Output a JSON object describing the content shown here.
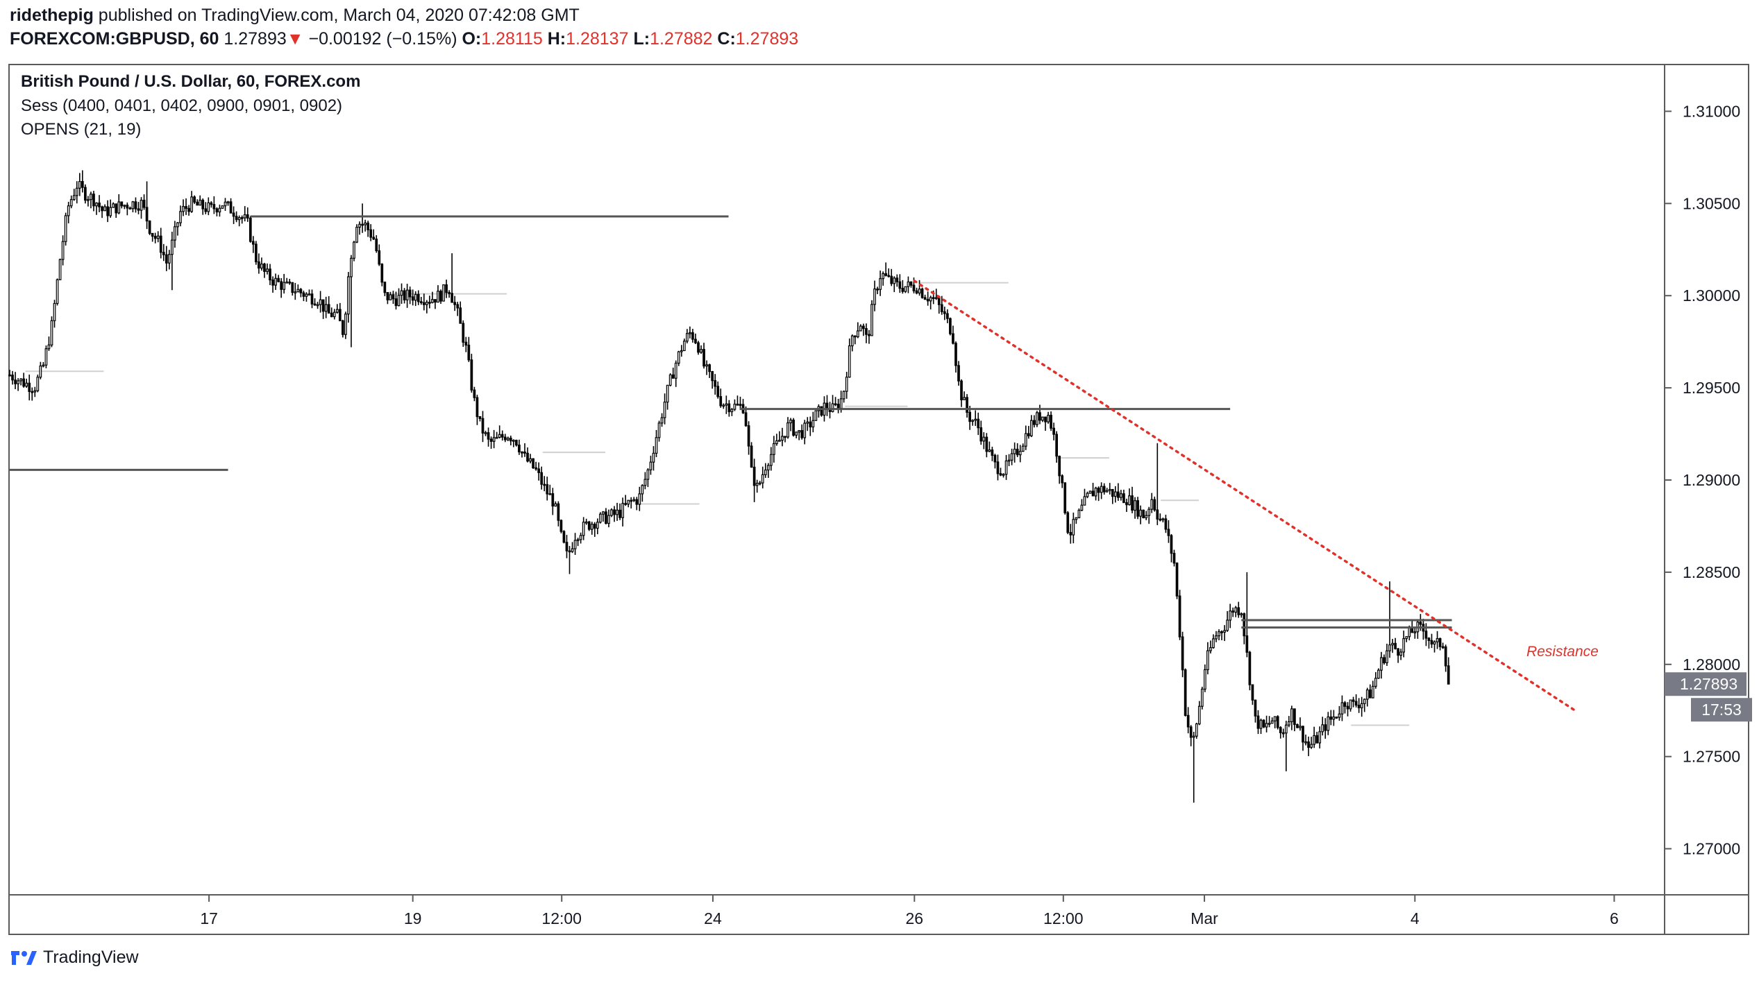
{
  "header": {
    "publisher": "ridethepig",
    "published_text": "published on TradingView.com, March 04, 2020 07:42:08 GMT",
    "symbol": "FOREXCOM:GBPUSD, 60",
    "last": "1.27893",
    "change_arrow": "▼",
    "change": "−0.00192 (−0.15%)",
    "o_label": "O:",
    "o": "1.28115",
    "h_label": "H:",
    "h": "1.28137",
    "l_label": "L:",
    "l": "1.27882",
    "c_label": "C:",
    "c": "1.27893"
  },
  "legend": {
    "title": "British Pound / U.S. Dollar, 60, FOREX.com",
    "sess": "Sess (0400, 0401, 0402, 0900, 0901, 0902)",
    "opens": "OPENS (21, 19)"
  },
  "footer": {
    "brand": "TradingView",
    "logo_icon": "tradingview-logo-icon"
  },
  "colors": {
    "candle": "#000000",
    "level": "#555555",
    "resistance": "#e0312b",
    "price_tag": "#787b86"
  },
  "chart_data": {
    "type": "candlestick",
    "symbol": "GBPUSD",
    "timeframe": "60",
    "ylim": [
      1.2675,
      1.3125
    ],
    "y_ticks": [
      "1.31000",
      "1.30500",
      "1.30000",
      "1.29500",
      "1.29000",
      "1.28500",
      "1.28000",
      "1.27500",
      "1.27000"
    ],
    "x_ticks": [
      {
        "label": "17",
        "t": 178
      },
      {
        "label": "19",
        "t": 360
      },
      {
        "label": "12:00",
        "t": 493
      },
      {
        "label": "24",
        "t": 628
      },
      {
        "label": "26",
        "t": 808
      },
      {
        "label": "12:00",
        "t": 941
      },
      {
        "label": "Mar",
        "t": 1067
      },
      {
        "label": "4",
        "t": 1255
      },
      {
        "label": "6",
        "t": 1433
      }
    ],
    "t_range": [
      0,
      1478
    ],
    "path": [
      [
        0,
        1.2957
      ],
      [
        12,
        1.2953
      ],
      [
        22,
        1.295
      ],
      [
        30,
        1.2962
      ],
      [
        38,
        1.2985
      ],
      [
        45,
        1.302
      ],
      [
        52,
        1.3048
      ],
      [
        60,
        1.306
      ],
      [
        68,
        1.3055
      ],
      [
        76,
        1.3052
      ],
      [
        84,
        1.3045
      ],
      [
        95,
        1.3048
      ],
      [
        108,
        1.305
      ],
      [
        118,
        1.305
      ],
      [
        126,
        1.3035
      ],
      [
        134,
        1.3028
      ],
      [
        140,
        1.3018
      ],
      [
        146,
        1.303
      ],
      [
        152,
        1.3045
      ],
      [
        162,
        1.305
      ],
      [
        172,
        1.3048
      ],
      [
        180,
        1.3047
      ],
      [
        190,
        1.305
      ],
      [
        202,
        1.3045
      ],
      [
        212,
        1.304
      ],
      [
        220,
        1.302
      ],
      [
        228,
        1.3012
      ],
      [
        236,
        1.3008
      ],
      [
        246,
        1.3005
      ],
      [
        256,
        1.3003
      ],
      [
        266,
        1.3
      ],
      [
        276,
        1.2998
      ],
      [
        284,
        1.299
      ],
      [
        292,
        1.299
      ],
      [
        298,
        1.298
      ],
      [
        304,
        1.302
      ],
      [
        310,
        1.304
      ],
      [
        318,
        1.3038
      ],
      [
        326,
        1.303
      ],
      [
        334,
        1.3
      ],
      [
        344,
        1.2998
      ],
      [
        354,
        1.3
      ],
      [
        364,
        1.3
      ],
      [
        374,
        1.2998
      ],
      [
        384,
        1.3
      ],
      [
        392,
        1.3005
      ],
      [
        400,
        1.299
      ],
      [
        408,
        1.297
      ],
      [
        414,
        1.2945
      ],
      [
        420,
        1.293
      ],
      [
        428,
        1.292
      ],
      [
        436,
        1.2922
      ],
      [
        444,
        1.2925
      ],
      [
        452,
        1.2922
      ],
      [
        460,
        1.2912
      ],
      [
        470,
        1.2905
      ],
      [
        478,
        1.2895
      ],
      [
        486,
        1.2888
      ],
      [
        492,
        1.287
      ],
      [
        498,
        1.2858
      ],
      [
        505,
        1.287
      ],
      [
        514,
        1.2875
      ],
      [
        524,
        1.2878
      ],
      [
        534,
        1.288
      ],
      [
        544,
        1.2882
      ],
      [
        554,
        1.2888
      ],
      [
        562,
        1.289
      ],
      [
        570,
        1.2905
      ],
      [
        578,
        1.2925
      ],
      [
        586,
        1.2945
      ],
      [
        594,
        1.2962
      ],
      [
        602,
        1.2975
      ],
      [
        608,
        1.298
      ],
      [
        614,
        1.2975
      ],
      [
        620,
        1.2962
      ],
      [
        628,
        1.2952
      ],
      [
        636,
        1.2942
      ],
      [
        646,
        1.294
      ],
      [
        656,
        1.294
      ],
      [
        662,
        1.2905
      ],
      [
        668,
        1.2895
      ],
      [
        676,
        1.291
      ],
      [
        686,
        1.292
      ],
      [
        696,
        1.293
      ],
      [
        704,
        1.2925
      ],
      [
        712,
        1.2928
      ],
      [
        720,
        1.2935
      ],
      [
        728,
        1.294
      ],
      [
        736,
        1.2938
      ],
      [
        744,
        1.2945
      ],
      [
        752,
        1.2978
      ],
      [
        760,
        1.2985
      ],
      [
        766,
        1.2975
      ],
      [
        772,
        1.3
      ],
      [
        778,
        1.3012
      ],
      [
        786,
        1.3008
      ],
      [
        794,
        1.3005
      ],
      [
        802,
        1.3005
      ],
      [
        810,
        1.3005
      ],
      [
        818,
        1.3
      ],
      [
        826,
        1.2998
      ],
      [
        834,
        1.299
      ],
      [
        842,
        1.298
      ],
      [
        848,
        1.295
      ],
      [
        856,
        1.2935
      ],
      [
        864,
        1.293
      ],
      [
        872,
        1.2918
      ],
      [
        880,
        1.2908
      ],
      [
        888,
        1.2905
      ],
      [
        896,
        1.2912
      ],
      [
        904,
        1.292
      ],
      [
        912,
        1.293
      ],
      [
        920,
        1.2935
      ],
      [
        928,
        1.2935
      ],
      [
        934,
        1.292
      ],
      [
        940,
        1.2895
      ],
      [
        946,
        1.287
      ],
      [
        954,
        1.288
      ],
      [
        962,
        1.289
      ],
      [
        970,
        1.2895
      ],
      [
        978,
        1.2895
      ],
      [
        988,
        1.2892
      ],
      [
        998,
        1.289
      ],
      [
        1006,
        1.2885
      ],
      [
        1014,
        1.288
      ],
      [
        1020,
        1.289
      ],
      [
        1026,
        1.288
      ],
      [
        1032,
        1.2875
      ],
      [
        1040,
        1.2855
      ],
      [
        1046,
        1.281
      ],
      [
        1050,
        1.2775
      ],
      [
        1056,
        1.2755
      ],
      [
        1062,
        1.2775
      ],
      [
        1068,
        1.28
      ],
      [
        1076,
        1.2815
      ],
      [
        1084,
        1.282
      ],
      [
        1092,
        1.283
      ],
      [
        1100,
        1.283
      ],
      [
        1106,
        1.28
      ],
      [
        1112,
        1.277
      ],
      [
        1120,
        1.2765
      ],
      [
        1128,
        1.277
      ],
      [
        1136,
        1.2762
      ],
      [
        1144,
        1.2775
      ],
      [
        1152,
        1.2765
      ],
      [
        1160,
        1.2755
      ],
      [
        1168,
        1.276
      ],
      [
        1176,
        1.2768
      ],
      [
        1184,
        1.2772
      ],
      [
        1192,
        1.278
      ],
      [
        1200,
        1.2778
      ],
      [
        1208,
        1.278
      ],
      [
        1216,
        1.2785
      ],
      [
        1224,
        1.28
      ],
      [
        1232,
        1.281
      ],
      [
        1240,
        1.2808
      ],
      [
        1248,
        1.2815
      ],
      [
        1256,
        1.282
      ],
      [
        1264,
        1.2818
      ],
      [
        1272,
        1.281
      ],
      [
        1280,
        1.2812
      ],
      [
        1286,
        1.2789
      ]
    ],
    "lows": [
      [
        500,
        1.2849
      ],
      [
        1058,
        1.2725
      ],
      [
        1140,
        1.2742
      ],
      [
        306,
        1.2972
      ],
      [
        144,
        1.3003
      ],
      [
        664,
        1.2888
      ]
    ],
    "highs": [
      [
        64,
        1.3068
      ],
      [
        122,
        1.3062
      ],
      [
        316,
        1.305
      ],
      [
        396,
        1.3023
      ],
      [
        610,
        1.2982
      ],
      [
        782,
        1.3018
      ],
      [
        1026,
        1.292
      ],
      [
        1104,
        1.285
      ],
      [
        1232,
        1.2845
      ]
    ],
    "levels": [
      {
        "t0": 0,
        "t1": 195,
        "y": 1.29055
      },
      {
        "t0": 215,
        "t1": 642,
        "y": 1.3043
      },
      {
        "t0": 652,
        "t1": 1090,
        "y": 1.29385
      },
      {
        "t0": 1100,
        "t1": 1288,
        "y": 1.2824
      },
      {
        "t0": 1100,
        "t1": 1288,
        "y": 1.282
      }
    ],
    "faint_levels": [
      {
        "t0": 14,
        "t1": 84,
        "y": 1.2959
      },
      {
        "t0": 336,
        "t1": 444,
        "y": 1.3001
      },
      {
        "t0": 476,
        "t1": 532,
        "y": 1.2915
      },
      {
        "t0": 562,
        "t1": 616,
        "y": 1.2887
      },
      {
        "t0": 746,
        "t1": 802,
        "y": 1.294
      },
      {
        "t0": 812,
        "t1": 892,
        "y": 1.3007
      },
      {
        "t0": 934,
        "t1": 982,
        "y": 1.2912
      },
      {
        "t0": 1028,
        "t1": 1062,
        "y": 1.2889
      },
      {
        "t0": 1198,
        "t1": 1250,
        "y": 1.2767
      }
    ],
    "resistance": {
      "label": "Resistance",
      "t0": 808,
      "y0": 1.3008,
      "t1": 1398,
      "y1": 1.2775
    },
    "current_price": {
      "label": "1.27893",
      "value": 1.27893,
      "countdown": "17:53"
    }
  }
}
